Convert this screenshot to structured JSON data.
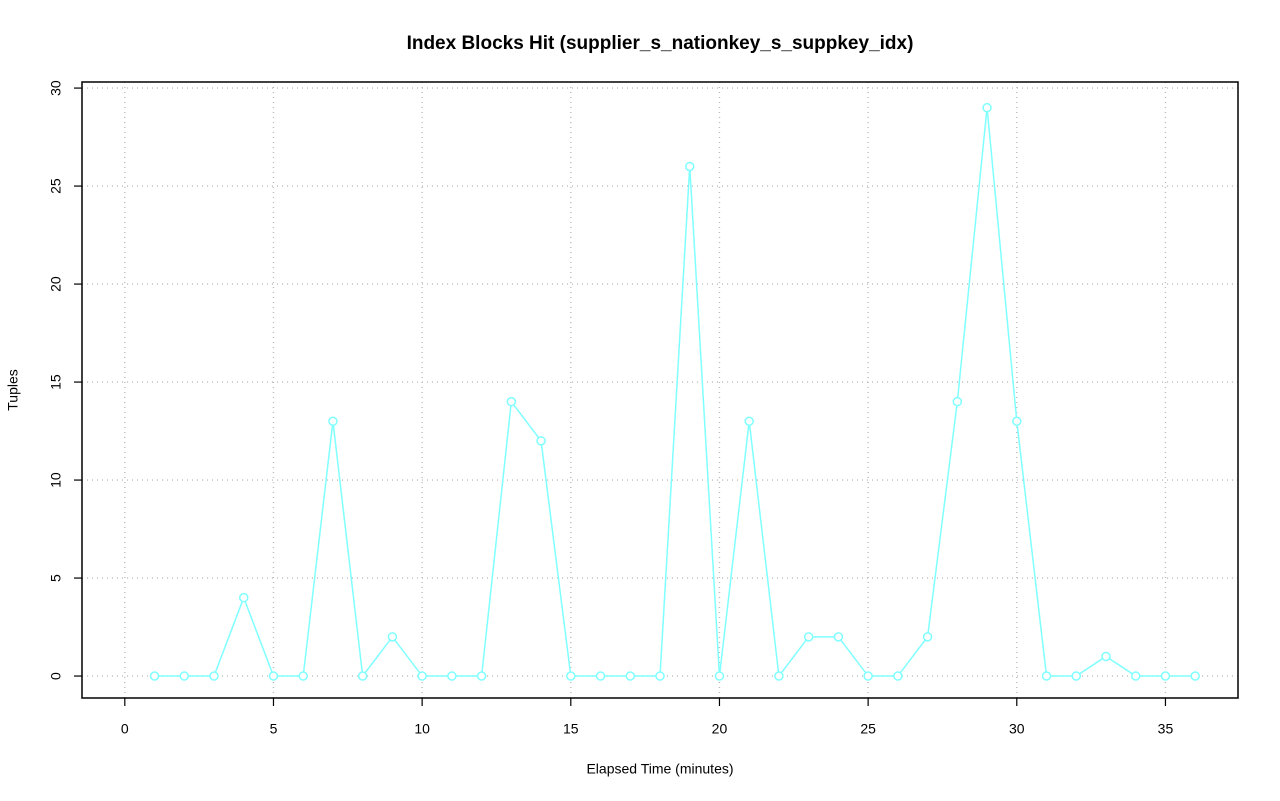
{
  "chart_data": {
    "type": "line",
    "title": "Index Blocks Hit (supplier_s_nationkey_s_suppkey_idx)",
    "x_label": "Elapsed Time (minutes)",
    "y_label": "Tuples",
    "x": [
      1,
      2,
      3,
      4,
      5,
      6,
      7,
      8,
      9,
      10,
      11,
      12,
      13,
      14,
      15,
      16,
      17,
      18,
      19,
      20,
      21,
      22,
      23,
      24,
      25,
      26,
      27,
      28,
      29,
      30,
      31,
      32,
      33,
      34,
      35,
      36
    ],
    "series": [
      {
        "color": "#80ffff",
        "values": [
          0,
          0,
          0,
          4,
          0,
          0,
          13,
          0,
          2,
          0,
          0,
          0,
          14,
          12,
          0,
          0,
          0,
          0,
          26,
          0,
          13,
          0,
          2,
          2,
          0,
          0,
          2,
          14,
          29,
          13,
          0,
          0,
          1,
          0,
          0,
          0
        ]
      }
    ],
    "xlim": [
      -1.44,
      37.44
    ],
    "xticks": [
      0,
      5,
      10,
      15,
      20,
      25,
      30,
      35
    ],
    "ylim": [
      -1.12,
      30.31
    ],
    "yticks": [
      0,
      5,
      10,
      15,
      20,
      25,
      30
    ],
    "grid": true
  }
}
